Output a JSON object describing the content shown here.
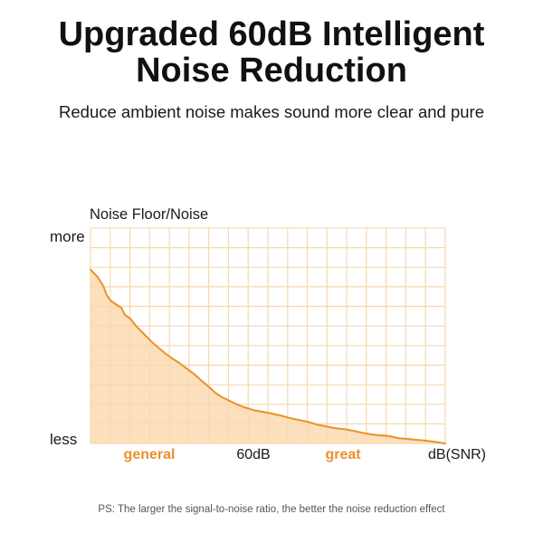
{
  "header": {
    "title_lines": [
      "Upgraded 60dB Intelligent",
      "Noise Reduction"
    ],
    "subtitle": "Reduce ambient noise makes sound more clear and pure"
  },
  "chart_data": {
    "type": "area",
    "ylabel": "Noise Floor/Noise",
    "xlabel": "dB(SNR)",
    "y_tick_labels": [
      "more",
      "less"
    ],
    "x_tick_labels": [
      "general",
      "60dB",
      "great"
    ],
    "xlim": [
      0,
      100
    ],
    "ylim": [
      0,
      100
    ],
    "grid": true,
    "series": [
      {
        "x": [
          0,
          2,
          3.6,
          4.6,
          5.6,
          7.1,
          8.7,
          9.7,
          11.2,
          12.8,
          14.3,
          15.8,
          17.3,
          19.1,
          20.9,
          23,
          25,
          27,
          29.1,
          31.1,
          33.2,
          35.2,
          37.2,
          39.3,
          41.3,
          43.4,
          45.9,
          48.5,
          51,
          53.6,
          56.1,
          58.7,
          61.2,
          63.8,
          66.3,
          68.9,
          71.4,
          74,
          76.5,
          79.1,
          81.6,
          84.2,
          86.7,
          89.3,
          91.8,
          94.4,
          96.9,
          100
        ],
        "y": [
          80.7,
          77.3,
          73.1,
          68.9,
          66.4,
          64.7,
          63,
          59.7,
          58,
          54.6,
          52.1,
          49.6,
          47.1,
          44.5,
          42,
          39.5,
          37.4,
          34.9,
          32.4,
          29.4,
          26.5,
          23.5,
          21.4,
          19.7,
          18.1,
          16.8,
          15.5,
          14.7,
          13.9,
          13,
          11.8,
          10.9,
          10.1,
          8.8,
          8,
          7.1,
          6.7,
          5.9,
          5,
          4.2,
          3.8,
          3.4,
          2.5,
          2.1,
          1.7,
          1.3,
          0.8,
          0
        ]
      }
    ],
    "colors": {
      "line": "#e8922a",
      "fill": "#fbd6a8",
      "grid": "#f5d9b0",
      "accent_label": "#e8922a"
    }
  },
  "footer": {
    "note": "PS: The larger the signal-to-noise ratio, the better the noise reduction effect"
  }
}
